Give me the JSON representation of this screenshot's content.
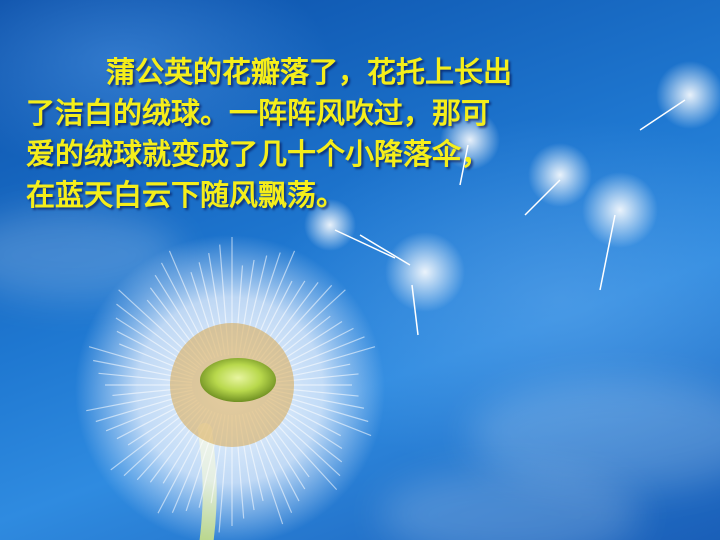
{
  "slide": {
    "poem_lines": [
      "蒲公英的花瓣落了，花托上长出",
      "了洁白的绒球。一阵阵风吹过，那可",
      "爱的绒球就变成了几十个小降落伞，",
      "在蓝天白云下随风飘荡。"
    ],
    "text_color": "#f5ee1a",
    "sky_color": "#1f78d1"
  }
}
